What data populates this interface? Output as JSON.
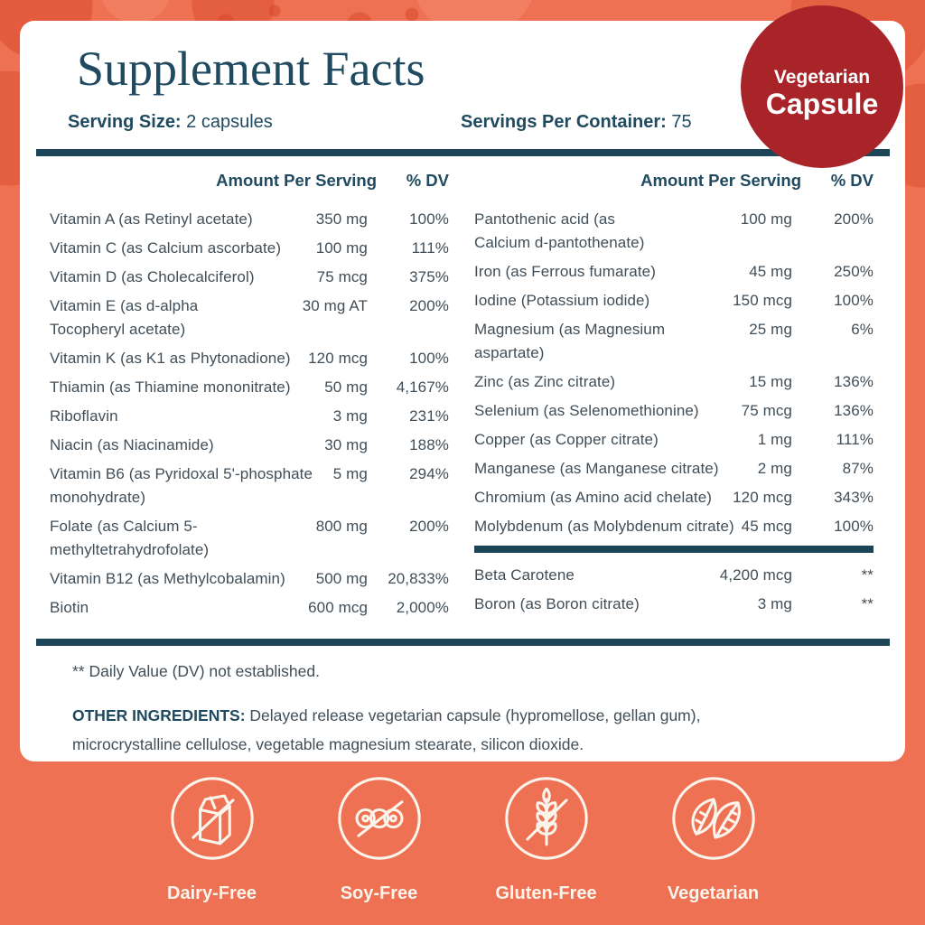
{
  "colors": {
    "coral_bg": "#EF7154",
    "pattern_red": "#D74628",
    "teal": "#1F4A5F",
    "bar": "#1C4557",
    "text": "#414E57",
    "badge_red": "#A82429",
    "cream": "#FBF4EB"
  },
  "card": {
    "title": "Supplement Facts",
    "serving_size_label": "Serving Size:",
    "serving_size_value": "2 capsules",
    "servings_label": "Servings Per Container:",
    "servings_value": "75"
  },
  "badge": {
    "line1": "Vegetarian",
    "line2": "Capsule"
  },
  "table": {
    "header_amount": "Amount Per Serving",
    "header_dv": "% DV",
    "left_rows": [
      {
        "name": "Vitamin A (as Retinyl acetate)",
        "amount": "350 mg",
        "dv": "100%"
      },
      {
        "name": "Vitamin C (as Calcium ascorbate)",
        "amount": "100 mg",
        "dv": "111%"
      },
      {
        "name": "Vitamin D (as Cholecalciferol)",
        "amount": "75 mcg",
        "dv": "375%"
      },
      {
        "name": "Vitamin E (as d-alpha\nTocopheryl acetate)",
        "amount": "30 mg AT",
        "dv": "200%"
      },
      {
        "name": "Vitamin K (as K1 as Phytonadione)",
        "amount": "120 mcg",
        "dv": "100%"
      },
      {
        "name": "Thiamin (as Thiamine mononitrate)",
        "amount": "50 mg",
        "dv": "4,167%"
      },
      {
        "name": "Riboflavin",
        "amount": "3 mg",
        "dv": "231%"
      },
      {
        "name": "Niacin (as Niacinamide)",
        "amount": "30 mg",
        "dv": "188%"
      },
      {
        "name": "Vitamin B6 (as Pyridoxal 5'-phosphate\nmonohydrate)",
        "amount": "5 mg",
        "dv": "294%"
      },
      {
        "name": "Folate (as Calcium 5-\nmethyltetrahydrofolate)",
        "amount": "800 mg",
        "dv": "200%"
      },
      {
        "name": "Vitamin B12 (as Methylcobalamin)",
        "amount": "500 mg",
        "dv": "20,833%"
      },
      {
        "name": "Biotin",
        "amount": "600 mcg",
        "dv": "2,000%"
      }
    ],
    "right_rows": [
      {
        "name": "Pantothenic acid (as\nCalcium d-pantothenate)",
        "amount": "100 mg",
        "dv": "200%"
      },
      {
        "name": "Iron (as Ferrous fumarate)",
        "amount": "45 mg",
        "dv": "250%"
      },
      {
        "name": "Iodine (Potassium iodide)",
        "amount": "150 mcg",
        "dv": "100%"
      },
      {
        "name": "Magnesium (as Magnesium\naspartate)",
        "amount": "25 mg",
        "dv": "6%"
      },
      {
        "name": "Zinc (as Zinc citrate)",
        "amount": "15 mg",
        "dv": "136%"
      },
      {
        "name": "Selenium (as Selenomethionine)",
        "amount": "75 mcg",
        "dv": "136%"
      },
      {
        "name": "Copper (as Copper citrate)",
        "amount": "1 mg",
        "dv": "111%"
      },
      {
        "name": "Manganese (as Manganese citrate)",
        "amount": "2 mg",
        "dv": "87%"
      },
      {
        "name": "Chromium (as Amino acid chelate)",
        "amount": "120 mcg",
        "dv": "343%"
      },
      {
        "name": "Molybdenum (as Molybdenum citrate)",
        "amount": "45 mcg",
        "dv": "100%"
      }
    ],
    "right_extra_rows": [
      {
        "name": "Beta Carotene",
        "amount": "4,200 mcg",
        "dv": "**"
      },
      {
        "name": "Boron (as Boron citrate)",
        "amount": "3 mg",
        "dv": "**"
      }
    ]
  },
  "footer": {
    "dv_note": "** Daily Value (DV) not established.",
    "other_ingredients_label": "OTHER INGREDIENTS:",
    "other_ingredients_text": "Delayed release vegetarian capsule (hypromellose, gellan gum),\nmicrocrystalline cellulose, vegetable magnesium stearate, silicon dioxide."
  },
  "free_from": [
    {
      "id": "dairy-free",
      "label": "Dairy-Free"
    },
    {
      "id": "soy-free",
      "label": "Soy-Free"
    },
    {
      "id": "gluten-free",
      "label": "Gluten-Free"
    },
    {
      "id": "vegetarian",
      "label": "Vegetarian"
    }
  ]
}
